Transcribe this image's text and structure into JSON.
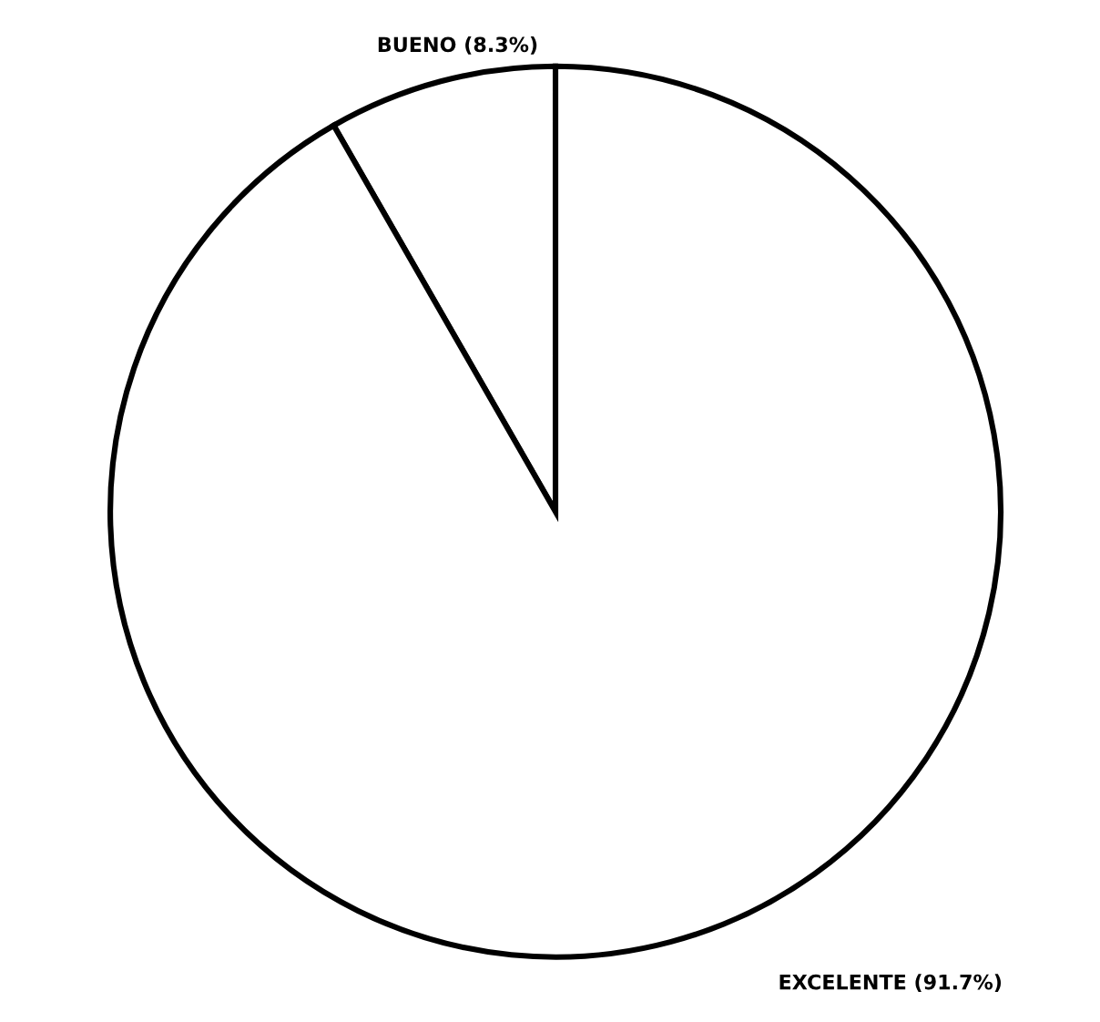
{
  "chart_data": {
    "type": "pie",
    "categories": [
      "BUENO (8.3%)",
      "EXCELENTE (91.7%)"
    ],
    "values": [
      8.3,
      91.7
    ],
    "colors": [
      "#ffffff",
      "#ffffff"
    ]
  }
}
